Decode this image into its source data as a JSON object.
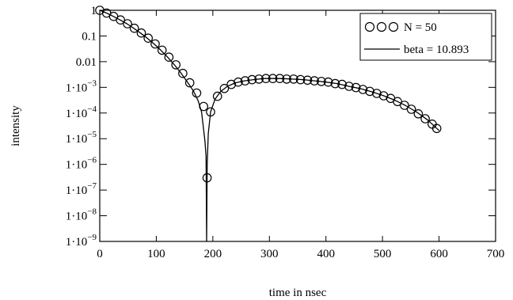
{
  "chart_data": {
    "type": "scatter",
    "xlabel": "time in nsec",
    "ylabel": "intensity",
    "xlim": [
      0,
      700
    ],
    "ylim": [
      1e-09,
      1
    ],
    "y_scale": "log",
    "grid": false,
    "legend_position": "top-right",
    "x_ticks": [
      0,
      100,
      200,
      300,
      400,
      500,
      600,
      700
    ],
    "y_ticks": [
      {
        "value": 1,
        "label": "1"
      },
      {
        "value": 0.1,
        "label": "0.1"
      },
      {
        "value": 0.01,
        "label": "0.01"
      },
      {
        "value": 0.001,
        "base": "1·10",
        "exp": "−3"
      },
      {
        "value": 0.0001,
        "base": "1·10",
        "exp": "−4"
      },
      {
        "value": 1e-05,
        "base": "1·10",
        "exp": "−5"
      },
      {
        "value": 1e-06,
        "base": "1·10",
        "exp": "−6"
      },
      {
        "value": 1e-07,
        "base": "1·10",
        "exp": "−7"
      },
      {
        "value": 1e-08,
        "base": "1·10",
        "exp": "−8"
      },
      {
        "value": 1e-09,
        "base": "1·10",
        "exp": "−9"
      }
    ],
    "series": [
      {
        "name": "N = 50",
        "style": "open circles",
        "points": [
          [
            0,
            1.0
          ],
          [
            12.2,
            0.78
          ],
          [
            24.5,
            0.58
          ],
          [
            36.7,
            0.42
          ],
          [
            49,
            0.3
          ],
          [
            61.2,
            0.2
          ],
          [
            73.5,
            0.13
          ],
          [
            85.7,
            0.082
          ],
          [
            98,
            0.049
          ],
          [
            110.2,
            0.028
          ],
          [
            122.4,
            0.015
          ],
          [
            134.7,
            0.0075
          ],
          [
            146.9,
            0.0035
          ],
          [
            159.2,
            0.0015
          ],
          [
            171.4,
            0.0006
          ],
          [
            183.7,
            0.00018
          ],
          [
            189.8,
            3e-07
          ],
          [
            196,
            0.00011
          ],
          [
            208.2,
            0.00045
          ],
          [
            220.4,
            0.0009
          ],
          [
            232.7,
            0.0013
          ],
          [
            244.9,
            0.0016
          ],
          [
            257.1,
            0.0018
          ],
          [
            269.4,
            0.002
          ],
          [
            281.6,
            0.0021
          ],
          [
            293.9,
            0.0022
          ],
          [
            306.1,
            0.0022
          ],
          [
            318.4,
            0.0022
          ],
          [
            330.6,
            0.0021
          ],
          [
            342.9,
            0.0021
          ],
          [
            355.1,
            0.002
          ],
          [
            367.3,
            0.0019
          ],
          [
            379.6,
            0.0018
          ],
          [
            391.8,
            0.0017
          ],
          [
            404.1,
            0.0016
          ],
          [
            416.3,
            0.0014
          ],
          [
            428.6,
            0.0013
          ],
          [
            440.8,
            0.0011
          ],
          [
            453.1,
            0.00098
          ],
          [
            465.3,
            0.00083
          ],
          [
            477.6,
            0.0007
          ],
          [
            489.8,
            0.00058
          ],
          [
            502,
            0.00047
          ],
          [
            514.3,
            0.00037
          ],
          [
            526.5,
            0.00028
          ],
          [
            538.8,
            0.0002
          ],
          [
            551,
            0.00014
          ],
          [
            563.3,
            9.3e-05
          ],
          [
            575.5,
            6e-05
          ],
          [
            587.8,
            3.7e-05
          ],
          [
            596,
            2.5e-05
          ]
        ]
      },
      {
        "name": "beta = 10.893",
        "style": "solid line",
        "points": [
          [
            0,
            1.0
          ],
          [
            12,
            0.78
          ],
          [
            24,
            0.58
          ],
          [
            36,
            0.42
          ],
          [
            48,
            0.3
          ],
          [
            60,
            0.2
          ],
          [
            72,
            0.13
          ],
          [
            84,
            0.082
          ],
          [
            96,
            0.049
          ],
          [
            108,
            0.028
          ],
          [
            120,
            0.015
          ],
          [
            132,
            0.0075
          ],
          [
            144,
            0.0035
          ],
          [
            156,
            0.0015
          ],
          [
            166,
            0.0007
          ],
          [
            174,
            0.0003
          ],
          [
            180,
            0.00011
          ],
          [
            184,
            2e-05
          ],
          [
            186,
            8e-06
          ],
          [
            188,
            2e-06
          ],
          [
            189,
            1e-09
          ],
          [
            190,
            1e-06
          ],
          [
            192,
            1.6e-05
          ],
          [
            196,
            0.00011
          ],
          [
            204,
            0.00035
          ],
          [
            214,
            0.0007
          ],
          [
            226,
            0.0011
          ],
          [
            240,
            0.0015
          ],
          [
            256,
            0.0018
          ],
          [
            272,
            0.002
          ],
          [
            290,
            0.0022
          ],
          [
            306,
            0.0022
          ],
          [
            320,
            0.0022
          ],
          [
            340,
            0.0021
          ],
          [
            360,
            0.002
          ],
          [
            380,
            0.0018
          ],
          [
            400,
            0.0016
          ],
          [
            420,
            0.0014
          ],
          [
            440,
            0.0011
          ],
          [
            460,
            0.0009
          ],
          [
            480,
            0.00068
          ],
          [
            500,
            0.00049
          ],
          [
            520,
            0.00033
          ],
          [
            540,
            0.0002
          ],
          [
            560,
            0.00011
          ],
          [
            580,
            5.3e-05
          ],
          [
            600,
            2.1e-05
          ]
        ]
      }
    ]
  }
}
